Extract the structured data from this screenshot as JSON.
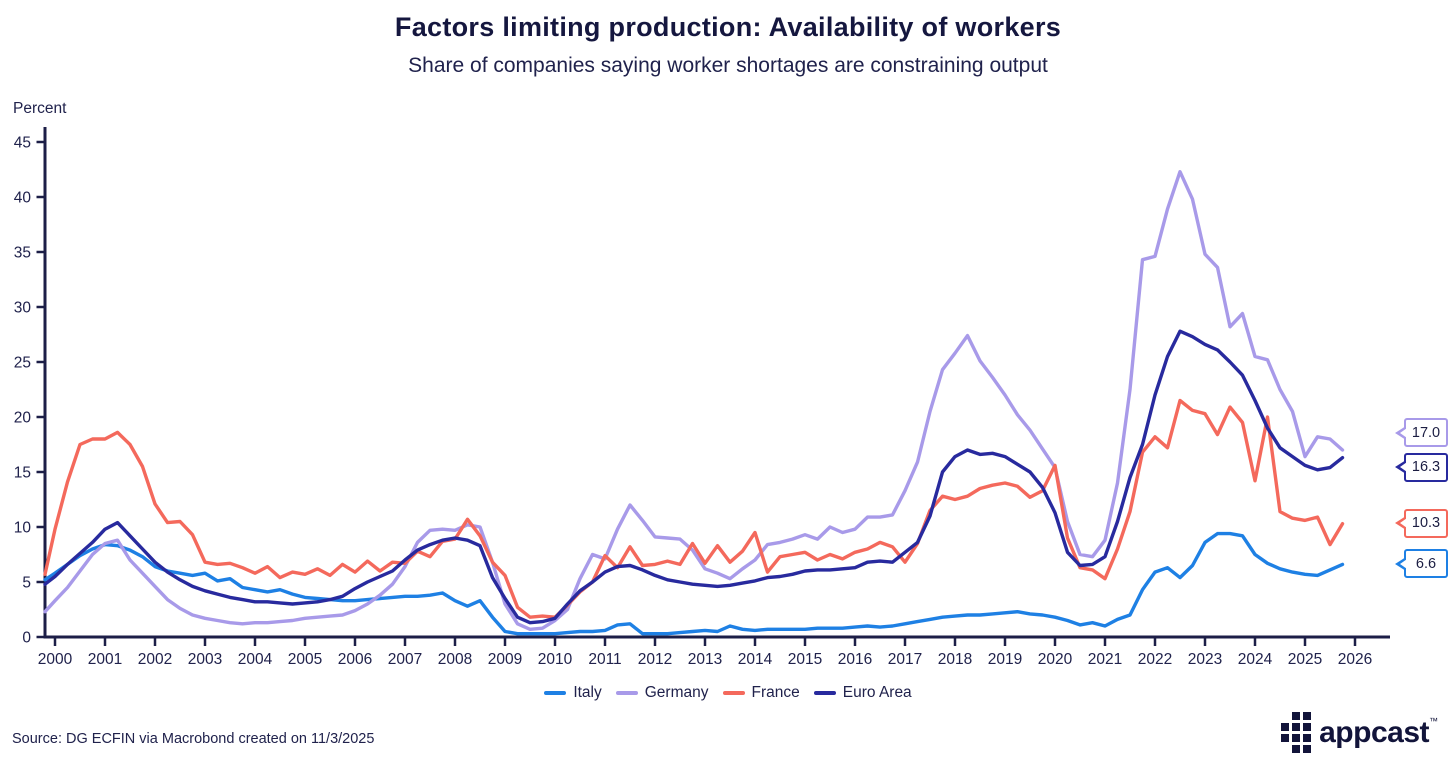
{
  "header": {
    "title": "Factors limiting production: Availability of workers",
    "subtitle": "Share of companies saying worker shortages are constraining output"
  },
  "chart_data": {
    "type": "line",
    "ylabel": "Percent",
    "ylim": [
      0,
      45
    ],
    "yticks": [
      0,
      5,
      10,
      15,
      20,
      25,
      30,
      35,
      40,
      45
    ],
    "xticks": [
      2000,
      2001,
      2002,
      2003,
      2004,
      2005,
      2006,
      2007,
      2008,
      2009,
      2010,
      2011,
      2012,
      2013,
      2014,
      2015,
      2016,
      2017,
      2018,
      2019,
      2020,
      2021,
      2022,
      2023,
      2024,
      2025,
      2026
    ],
    "x_start": 1999.75,
    "x_step": 0.25,
    "grid": false,
    "legend_position": "bottom",
    "series": [
      {
        "name": "Italy",
        "color": "#1e80e4",
        "end_label": "6.6",
        "values": [
          5.2,
          5.8,
          6.6,
          7.4,
          8.0,
          8.4,
          8.3,
          7.9,
          7.3,
          6.4,
          6.0,
          5.8,
          5.6,
          5.8,
          5.1,
          5.3,
          4.5,
          4.3,
          4.1,
          4.3,
          3.9,
          3.6,
          3.5,
          3.4,
          3.3,
          3.3,
          3.4,
          3.5,
          3.6,
          3.7,
          3.7,
          3.8,
          4.0,
          3.3,
          2.8,
          3.3,
          1.8,
          0.5,
          0.3,
          0.3,
          0.3,
          0.3,
          0.4,
          0.5,
          0.5,
          0.6,
          1.1,
          1.2,
          0.3,
          0.3,
          0.3,
          0.4,
          0.5,
          0.6,
          0.5,
          1.0,
          0.7,
          0.6,
          0.7,
          0.7,
          0.7,
          0.7,
          0.8,
          0.8,
          0.8,
          0.9,
          1.0,
          0.9,
          1.0,
          1.2,
          1.4,
          1.6,
          1.8,
          1.9,
          2.0,
          2.0,
          2.1,
          2.2,
          2.3,
          2.1,
          2.0,
          1.8,
          1.5,
          1.1,
          1.3,
          1.0,
          1.6,
          2.0,
          4.3,
          5.9,
          6.3,
          5.4,
          6.5,
          8.6,
          9.4,
          9.4,
          9.2,
          7.5,
          6.7,
          6.2,
          5.9,
          5.7,
          5.6,
          6.1,
          6.6
        ]
      },
      {
        "name": "Germany",
        "color": "#a89ae9",
        "end_label": "17.0",
        "values": [
          2.3,
          3.3,
          4.5,
          6.0,
          7.5,
          8.5,
          8.8,
          7.0,
          5.8,
          4.6,
          3.4,
          2.6,
          2.0,
          1.7,
          1.5,
          1.3,
          1.2,
          1.3,
          1.3,
          1.4,
          1.5,
          1.7,
          1.8,
          1.9,
          2.0,
          2.4,
          3.0,
          3.8,
          4.8,
          6.4,
          8.6,
          9.7,
          9.8,
          9.7,
          10.2,
          10.0,
          6.8,
          3.0,
          1.2,
          0.7,
          0.8,
          1.5,
          2.5,
          5.3,
          7.5,
          7.1,
          9.8,
          12.0,
          10.6,
          9.1,
          9.0,
          8.9,
          7.9,
          6.2,
          5.8,
          5.3,
          6.2,
          7.0,
          8.4,
          8.6,
          8.9,
          9.3,
          8.9,
          10.0,
          9.5,
          9.8,
          10.9,
          10.9,
          11.1,
          13.3,
          15.9,
          20.5,
          24.3,
          25.8,
          27.4,
          25.1,
          23.6,
          22.0,
          20.2,
          18.8,
          17.1,
          15.4,
          10.5,
          7.5,
          7.3,
          8.8,
          14.0,
          22.5,
          34.3,
          34.6,
          38.9,
          42.3,
          39.8,
          34.8,
          33.6,
          28.2,
          29.4,
          25.5,
          25.2,
          22.5,
          20.5,
          16.4,
          18.2,
          18.0,
          17.0
        ]
      },
      {
        "name": "France",
        "color": "#f4695c",
        "end_label": "10.3",
        "values": [
          5.7,
          9.8,
          14.1,
          17.5,
          18.0,
          18.0,
          18.6,
          17.5,
          15.5,
          12.1,
          10.4,
          10.5,
          9.3,
          6.8,
          6.6,
          6.7,
          6.3,
          5.8,
          6.4,
          5.4,
          5.9,
          5.7,
          6.2,
          5.6,
          6.6,
          5.9,
          6.9,
          6.0,
          6.8,
          6.7,
          7.8,
          7.3,
          8.7,
          8.9,
          10.7,
          9.2,
          6.8,
          5.6,
          2.7,
          1.8,
          1.9,
          1.8,
          2.9,
          4.1,
          5.0,
          7.4,
          6.3,
          8.2,
          6.5,
          6.6,
          6.9,
          6.6,
          8.5,
          6.7,
          8.3,
          6.8,
          7.8,
          9.5,
          5.9,
          7.3,
          7.5,
          7.7,
          7.0,
          7.5,
          7.1,
          7.7,
          8.0,
          8.6,
          8.2,
          6.8,
          8.5,
          11.5,
          12.8,
          12.5,
          12.8,
          13.5,
          13.8,
          14.0,
          13.7,
          12.7,
          13.3,
          15.6,
          9.0,
          6.3,
          6.1,
          5.3,
          8.0,
          11.4,
          16.8,
          18.2,
          17.2,
          21.5,
          20.6,
          20.3,
          18.4,
          20.9,
          19.5,
          14.2,
          20.0,
          11.4,
          10.8,
          10.6,
          10.9,
          8.4,
          10.3
        ]
      },
      {
        "name": "Euro Area",
        "color": "#282a9e",
        "end_label": "16.3",
        "values": [
          4.8,
          5.5,
          6.6,
          7.6,
          8.6,
          9.8,
          10.4,
          9.2,
          8.0,
          6.8,
          5.9,
          5.2,
          4.6,
          4.2,
          3.9,
          3.6,
          3.4,
          3.2,
          3.2,
          3.1,
          3.0,
          3.1,
          3.2,
          3.4,
          3.7,
          4.4,
          5.0,
          5.5,
          6.0,
          7.0,
          7.9,
          8.4,
          8.8,
          9.0,
          8.8,
          8.3,
          5.4,
          3.5,
          1.8,
          1.3,
          1.4,
          1.7,
          3.0,
          4.2,
          5.0,
          5.9,
          6.4,
          6.5,
          6.1,
          5.6,
          5.2,
          5.0,
          4.8,
          4.7,
          4.6,
          4.7,
          4.9,
          5.1,
          5.4,
          5.5,
          5.7,
          6.0,
          6.1,
          6.1,
          6.2,
          6.3,
          6.8,
          6.9,
          6.8,
          7.7,
          8.6,
          11.0,
          15.0,
          16.4,
          17.0,
          16.6,
          16.7,
          16.4,
          15.7,
          15.0,
          13.6,
          11.3,
          7.7,
          6.5,
          6.6,
          7.3,
          10.5,
          14.5,
          17.5,
          22.0,
          25.5,
          27.8,
          27.3,
          26.6,
          26.1,
          25.0,
          23.8,
          21.5,
          19.0,
          17.2,
          16.4,
          15.6,
          15.2,
          15.4,
          16.3
        ]
      }
    ]
  },
  "footer": {
    "source": "Source: DG ECFIN via Macrobond created on 11/3/2025",
    "logo_text": "appcast",
    "logo_tm": "™"
  }
}
